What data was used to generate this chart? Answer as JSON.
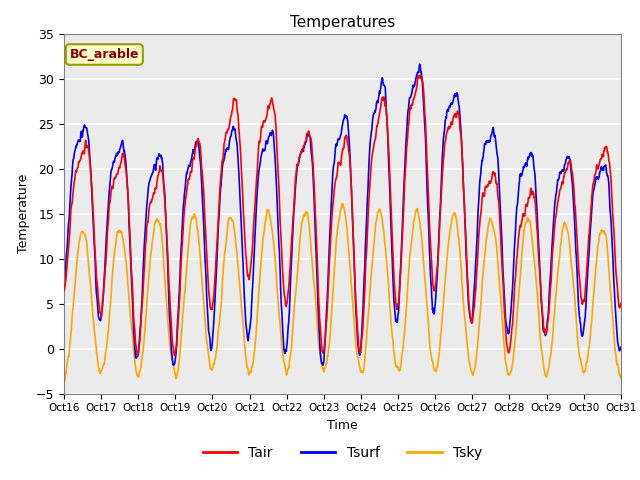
{
  "title": "Temperatures",
  "xlabel": "Time",
  "ylabel": "Temperature",
  "ylim": [
    -5,
    35
  ],
  "xlim": [
    0,
    360
  ],
  "background_color": "#ebebeb",
  "grid_color": "white",
  "annotation_text": "BC_arable",
  "annotation_bg": "#ffffcc",
  "annotation_border": "#999900",
  "x_tick_labels": [
    "Oct 16",
    "Oct 17",
    "Oct 18",
    "Oct 19",
    "Oct 20",
    "Oct 21",
    "Oct 22",
    "Oct 23",
    "Oct 24",
    "Oct 25",
    "Oct 26",
    "Oct 27",
    "Oct 28",
    "Oct 29",
    "Oct 30",
    "Oct 31"
  ],
  "x_tick_positions": [
    0,
    24,
    48,
    72,
    96,
    120,
    144,
    168,
    192,
    216,
    240,
    264,
    288,
    312,
    336,
    360
  ],
  "legend_labels": [
    "Tair",
    "Tsurf",
    "Tsky"
  ],
  "Tair_color": "red",
  "Tsurf_color": "blue",
  "Tsky_color": "orange",
  "line_width": 1.2
}
